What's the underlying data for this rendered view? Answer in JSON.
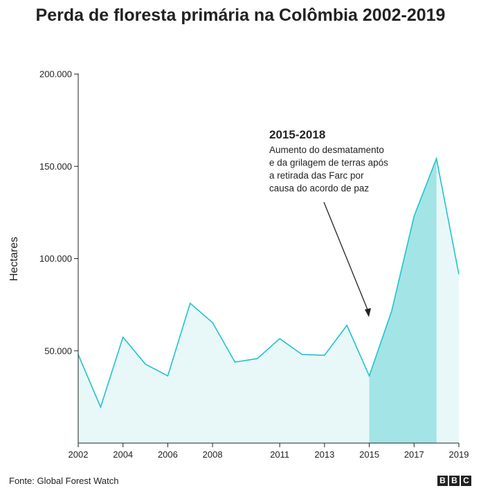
{
  "chart_data": {
    "type": "area",
    "title": "Perda de floresta primária na Colômbia 2002-2019",
    "ylabel": "Hectares",
    "xlabel": "",
    "x": [
      2002,
      2003,
      2004,
      2005,
      2006,
      2007,
      2008,
      2009,
      2010,
      2011,
      2012,
      2013,
      2014,
      2015,
      2016,
      2017,
      2018,
      2019
    ],
    "values": [
      48000,
      19500,
      57400,
      42800,
      36400,
      75800,
      65300,
      43900,
      45800,
      56600,
      48000,
      47600,
      63800,
      36400,
      71600,
      123000,
      154200,
      91500
    ],
    "xticks": [
      "2002",
      "2004",
      "2006",
      "2008",
      "2011",
      "2013",
      "2015",
      "2017",
      "2019"
    ],
    "yticks": [
      "50.000",
      "100.000",
      "150.000",
      "200.000"
    ],
    "ytick_values": [
      50000,
      100000,
      150000,
      200000
    ],
    "xlim": [
      2002,
      2019
    ],
    "ylim": [
      0,
      200000
    ],
    "highlight_range": [
      2015,
      2018
    ],
    "grid": false,
    "colors": {
      "line": "#1fc4c9",
      "fill": "#e8f8f9",
      "highlight": "#a3e4e6"
    },
    "annotation": {
      "title": "2015-2018",
      "lines": [
        "Aumento do desmatamento",
        "e da grilagem de terras após",
        "a retirada das Farc por",
        "causa do acordo de paz"
      ]
    }
  },
  "footer": {
    "source": "Fonte: Global Forest Watch",
    "logo": "BBC"
  }
}
